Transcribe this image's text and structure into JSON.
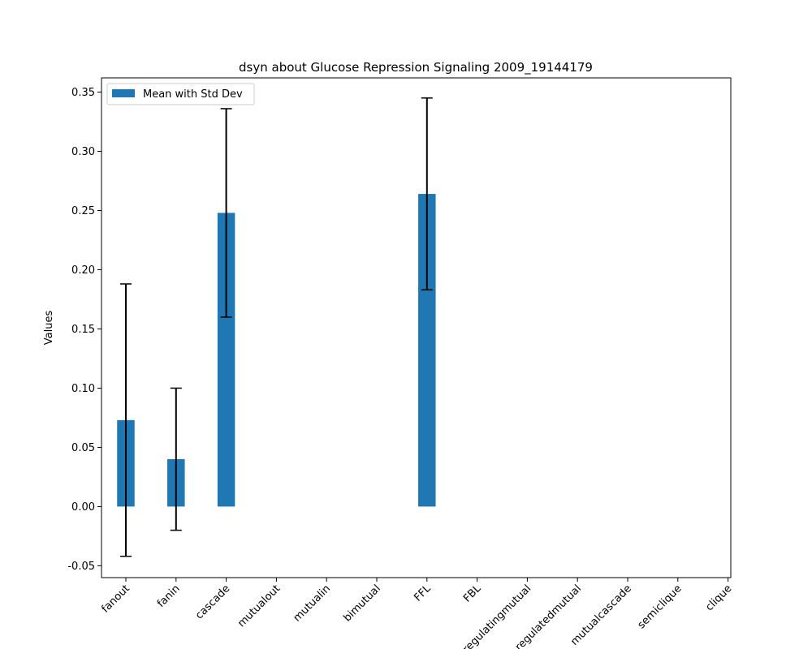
{
  "chart_data": {
    "type": "bar",
    "title": "dsyn about Glucose Repression Signaling 2009_19144179",
    "xlabel": "",
    "ylabel": "Values",
    "ylim": [
      -0.06,
      0.362
    ],
    "yticks": [
      -0.05,
      0.0,
      0.05,
      0.1,
      0.15,
      0.2,
      0.25,
      0.3,
      0.35
    ],
    "categories": [
      "fanout",
      "fanin",
      "cascade",
      "mutualout",
      "mutualin",
      "bimutual",
      "FFL",
      "FBL",
      "regulatingmutual",
      "regulatedmutual",
      "mutualcascade",
      "semiclique",
      "clique"
    ],
    "series": [
      {
        "name": "Mean with Std Dev",
        "values": [
          0.073,
          0.04,
          0.248,
          null,
          null,
          null,
          0.264,
          null,
          null,
          null,
          null,
          null,
          null
        ],
        "std": [
          0.115,
          0.06,
          0.088,
          null,
          null,
          null,
          0.081,
          null,
          null,
          null,
          null,
          null,
          null
        ]
      }
    ],
    "legend": {
      "position": "top-left",
      "label": "Mean with Std Dev"
    },
    "grid": false,
    "colors": {
      "bar": "#1f77b4",
      "error": "#000000",
      "axes": "#000000"
    }
  }
}
